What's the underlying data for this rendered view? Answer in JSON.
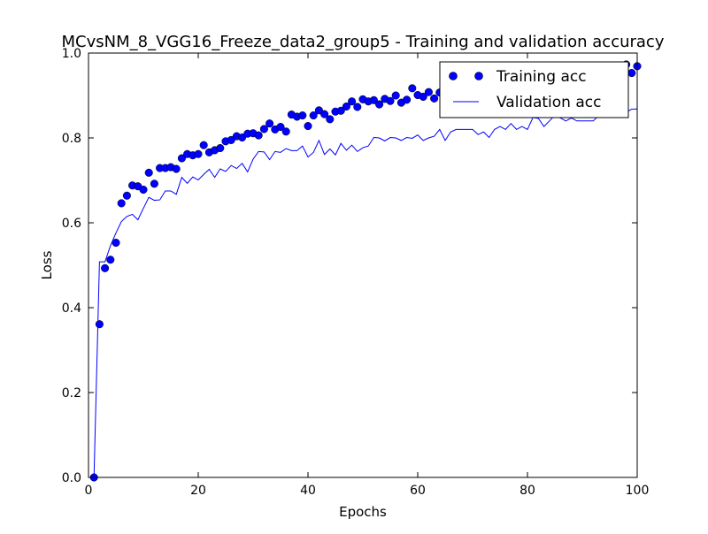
{
  "chart_data": {
    "type": "scatter",
    "title": "MCvsNM_8_VGG16_Freeze_data2_group5 - Training and validation accuracy",
    "xlabel": "Epochs",
    "ylabel": "Loss",
    "xlim": [
      0,
      100
    ],
    "ylim": [
      0,
      1.0
    ],
    "xticks": [
      "0",
      "20",
      "40",
      "60",
      "80",
      "100"
    ],
    "yticks": [
      "0.0",
      "0.2",
      "0.4",
      "0.6",
      "0.8",
      "1.0"
    ],
    "grid": false,
    "legend_position": "top-right",
    "series": [
      {
        "name": "Training acc",
        "style": "markers",
        "color": "#0000ff",
        "x": [
          1,
          2,
          3,
          4,
          5,
          6,
          7,
          8,
          9,
          10,
          11,
          12,
          13,
          14,
          15,
          16,
          17,
          18,
          19,
          20,
          21,
          22,
          23,
          24,
          25,
          26,
          27,
          28,
          29,
          30,
          31,
          32,
          33,
          34,
          35,
          36,
          37,
          38,
          39,
          40,
          41,
          42,
          43,
          44,
          45,
          46,
          47,
          48,
          49,
          50,
          51,
          52,
          53,
          54,
          55,
          56,
          57,
          58,
          59,
          60,
          61,
          62,
          63,
          64,
          65,
          66,
          67,
          68,
          69,
          70,
          71,
          72,
          73,
          74,
          75,
          76,
          77,
          78,
          79,
          80,
          81,
          82,
          83,
          84,
          85,
          86,
          87,
          88,
          89,
          90,
          91,
          92,
          93,
          94,
          95,
          96,
          97,
          98,
          99,
          100
        ],
        "values": [
          0.0,
          0.361,
          0.493,
          0.513,
          0.553,
          0.646,
          0.664,
          0.688,
          0.686,
          0.678,
          0.718,
          0.692,
          0.729,
          0.729,
          0.731,
          0.727,
          0.752,
          0.762,
          0.759,
          0.762,
          0.783,
          0.766,
          0.771,
          0.776,
          0.792,
          0.795,
          0.804,
          0.801,
          0.81,
          0.811,
          0.806,
          0.821,
          0.834,
          0.82,
          0.826,
          0.815,
          0.855,
          0.85,
          0.853,
          0.828,
          0.853,
          0.865,
          0.856,
          0.844,
          0.862,
          0.864,
          0.874,
          0.886,
          0.873,
          0.891,
          0.886,
          0.889,
          0.879,
          0.892,
          0.887,
          0.9,
          0.883,
          0.89,
          0.917,
          0.901,
          0.897,
          0.908,
          0.893,
          0.907,
          0.912,
          0.915,
          0.912,
          0.915,
          0.92,
          0.916,
          0.915,
          0.925,
          0.92,
          0.927,
          0.93,
          0.924,
          0.935,
          0.94,
          0.931,
          0.944,
          0.938,
          0.943,
          0.94,
          0.944,
          0.95,
          0.948,
          0.949,
          0.952,
          0.945,
          0.95,
          0.954,
          0.955,
          0.955,
          0.96,
          0.958,
          0.961,
          0.96,
          0.973,
          0.953,
          0.969
        ]
      },
      {
        "name": "Validation acc",
        "style": "line",
        "color": "#0000ff",
        "x": [
          1,
          2,
          3,
          4,
          5,
          6,
          7,
          8,
          9,
          10,
          11,
          12,
          13,
          14,
          15,
          16,
          17,
          18,
          19,
          20,
          21,
          22,
          23,
          24,
          25,
          26,
          27,
          28,
          29,
          30,
          31,
          32,
          33,
          34,
          35,
          36,
          37,
          38,
          39,
          40,
          41,
          42,
          43,
          44,
          45,
          46,
          47,
          48,
          49,
          50,
          51,
          52,
          53,
          54,
          55,
          56,
          57,
          58,
          59,
          60,
          61,
          62,
          63,
          64,
          65,
          66,
          67,
          68,
          69,
          70,
          71,
          72,
          73,
          74,
          75,
          76,
          77,
          78,
          79,
          80,
          81,
          82,
          83,
          84,
          85,
          86,
          87,
          88,
          89,
          90,
          91,
          92,
          93,
          94,
          95,
          96,
          97,
          98,
          99,
          100
        ],
        "values": [
          0.0,
          0.508,
          0.508,
          0.546,
          0.576,
          0.603,
          0.615,
          0.62,
          0.607,
          0.634,
          0.66,
          0.653,
          0.654,
          0.675,
          0.675,
          0.667,
          0.707,
          0.693,
          0.708,
          0.701,
          0.714,
          0.726,
          0.707,
          0.727,
          0.721,
          0.735,
          0.728,
          0.74,
          0.72,
          0.75,
          0.768,
          0.767,
          0.749,
          0.768,
          0.766,
          0.775,
          0.77,
          0.77,
          0.781,
          0.755,
          0.766,
          0.794,
          0.761,
          0.774,
          0.76,
          0.787,
          0.771,
          0.783,
          0.768,
          0.777,
          0.781,
          0.801,
          0.8,
          0.793,
          0.801,
          0.8,
          0.794,
          0.801,
          0.799,
          0.807,
          0.794,
          0.8,
          0.804,
          0.82,
          0.794,
          0.814,
          0.82,
          0.82,
          0.82,
          0.82,
          0.808,
          0.814,
          0.801,
          0.82,
          0.827,
          0.82,
          0.834,
          0.82,
          0.827,
          0.82,
          0.848,
          0.846,
          0.827,
          0.84,
          0.853,
          0.847,
          0.84,
          0.847,
          0.84,
          0.84,
          0.84,
          0.84,
          0.853,
          0.853,
          0.853,
          0.853,
          0.853,
          0.86,
          0.868,
          0.868
        ]
      }
    ]
  }
}
